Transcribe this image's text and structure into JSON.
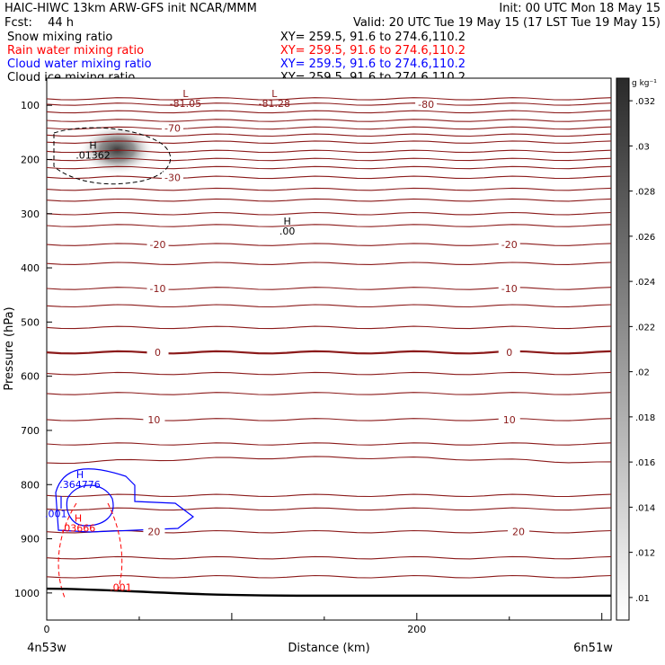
{
  "header": {
    "title": "HAIC-HIWC 13km ARW-GFS init   NCAR/MMM",
    "init": "Init: 00 UTC Mon 18 May 15",
    "fcst_label": "Fcst:",
    "fcst_value": "44 h",
    "valid": "Valid: 20 UTC Tue 19 May 15 (17 LST Tue 19 May 15)",
    "fields": [
      {
        "name": "Snow mixing ratio",
        "xy": "XY= 259.5, 91.6 to 274.6,110.2",
        "color": "#000000"
      },
      {
        "name": "Rain water mixing ratio",
        "xy": "XY= 259.5, 91.6 to 274.6,110.2",
        "color": "#ff0000"
      },
      {
        "name": "Cloud water mixing ratio",
        "xy": "XY= 259.5, 91.6 to 274.6,110.2",
        "color": "#0000ff"
      },
      {
        "name": "Cloud ice mixing ratio",
        "xy": "XY= 259.5, 91.6 to 274.6,110.2",
        "color": "#000000"
      }
    ]
  },
  "chart_data": {
    "type": "cross-section contour",
    "xlabel": "Distance (km)",
    "ylabel": "Pressure (hPa)",
    "x_ticks": [
      0,
      200
    ],
    "x_range": [
      0,
      305
    ],
    "y_ticks": [
      100,
      200,
      300,
      400,
      500,
      600,
      700,
      800,
      900,
      1000
    ],
    "y_range_hPa": [
      50,
      1050
    ],
    "y_scale": "linear",
    "x_start_label": "4n53w",
    "x_end_label": "6n51w",
    "temperature_contours": {
      "color": "#8b1a1a",
      "interval_C": 10,
      "approx_levels": [
        {
          "p": 98,
          "label": "-80",
          "label_x": 205
        },
        {
          "p": 142,
          "label": "-70",
          "label_x": 68
        },
        {
          "p": 233,
          "label": "-30",
          "label_x": 68
        },
        {
          "p": 357,
          "label": "-20",
          "label_x": 60
        },
        {
          "p": 357,
          "label": "-20",
          "label_x": 250
        },
        {
          "p": 438,
          "label": "-10",
          "label_x": 60
        },
        {
          "p": 438,
          "label": "-10",
          "label_x": 250
        },
        {
          "p": 556,
          "label": "0",
          "label_x": 60
        },
        {
          "p": 556,
          "label": "0",
          "label_x": 250
        },
        {
          "p": 680,
          "label": "10",
          "label_x": 58
        },
        {
          "p": 680,
          "label": "10",
          "label_x": 250
        },
        {
          "p": 887,
          "label": "20",
          "label_x": 58
        },
        {
          "p": 887,
          "label": "20",
          "label_x": 255
        }
      ],
      "extra_levels_p": [
        88,
        112,
        128,
        155,
        168,
        185,
        200,
        215,
        255,
        275,
        300,
        322,
        392,
        470,
        510,
        595,
        632,
        725,
        760,
        820,
        845,
        935,
        970
      ]
    },
    "surface_p": [
      992,
      1005
    ],
    "annotations": [
      {
        "text": "L",
        "value": "-81.05",
        "x": 75,
        "p": 85,
        "color": "#8b1a1a"
      },
      {
        "text": "L",
        "value": "-81.28",
        "x": 123,
        "p": 85,
        "color": "#8b1a1a"
      },
      {
        "text": "H",
        "value": ".01362",
        "x": 25,
        "p": 180,
        "color": "#000000"
      },
      {
        "text": "H",
        "value": ".00",
        "x": 130,
        "p": 320,
        "color": "#000000"
      },
      {
        "text": "H",
        "value": ".364776",
        "x": 18,
        "p": 788,
        "color": "#0000ff"
      },
      {
        "text": "",
        "value": ".001",
        "x": 5,
        "p": 842,
        "color": "#0000ff"
      },
      {
        "text": "H",
        "value": ".03666",
        "x": 17,
        "p": 868,
        "color": "#ff0000"
      },
      {
        "text": "",
        "value": ".001",
        "x": 40,
        "p": 978,
        "color": "#ff0000"
      }
    ],
    "colorbar": {
      "units": "g kg⁻¹",
      "ticks": [
        ".032",
        ".03",
        ".028",
        ".026",
        ".024",
        ".022",
        ".02",
        ".018",
        ".016",
        ".014",
        ".012",
        ".01"
      ]
    }
  }
}
